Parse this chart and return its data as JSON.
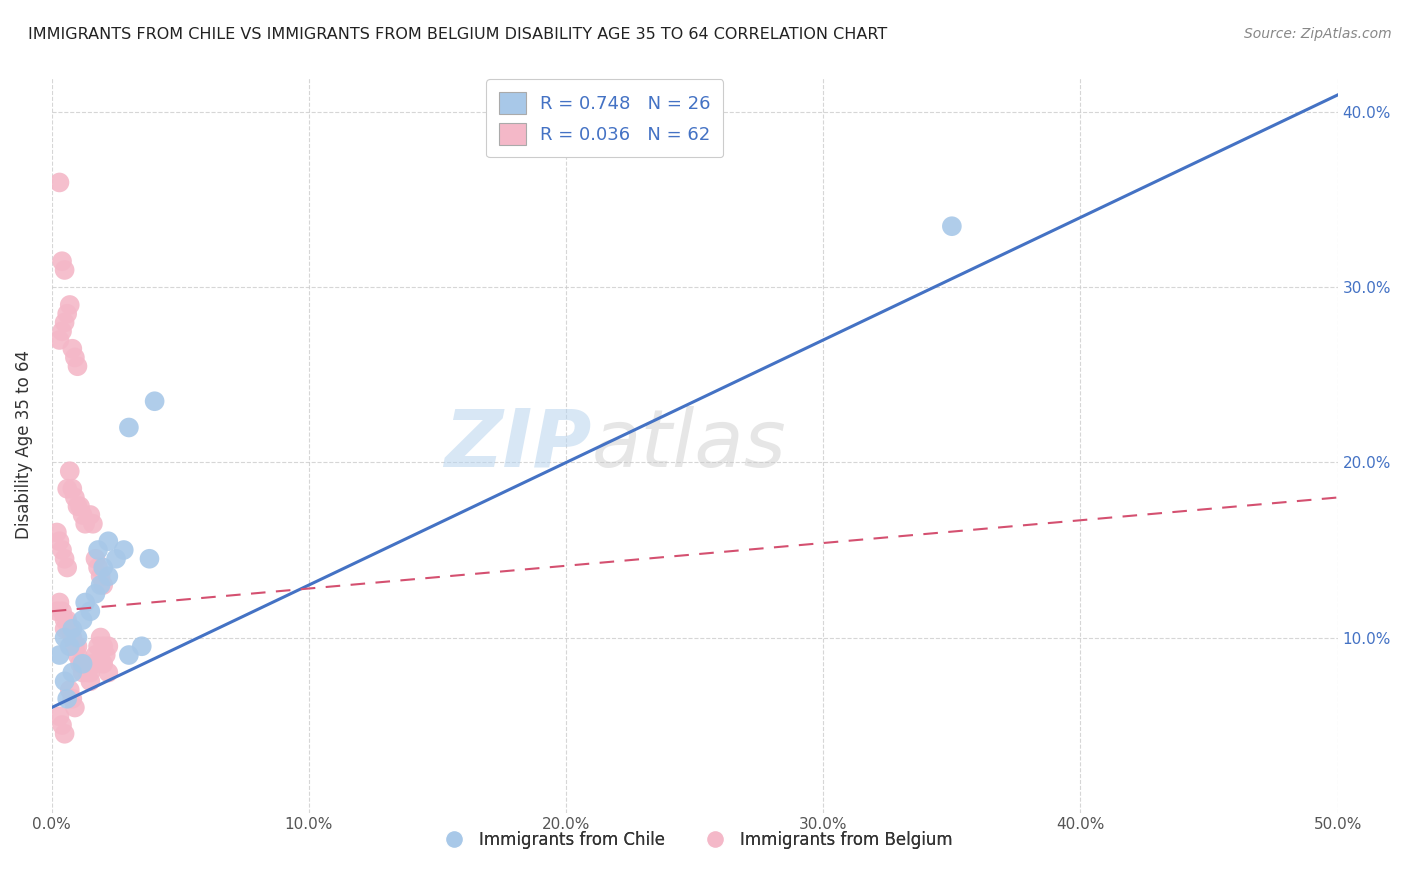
{
  "title": "IMMIGRANTS FROM CHILE VS IMMIGRANTS FROM BELGIUM DISABILITY AGE 35 TO 64 CORRELATION CHART",
  "source": "Source: ZipAtlas.com",
  "ylabel": "Disability Age 35 to 64",
  "xlim": [
    0.0,
    0.5
  ],
  "ylim": [
    0.0,
    0.42
  ],
  "xticks": [
    0.0,
    0.1,
    0.2,
    0.3,
    0.4,
    0.5
  ],
  "yticks": [
    0.1,
    0.2,
    0.3,
    0.4
  ],
  "xtick_labels": [
    "0.0%",
    "10.0%",
    "20.0%",
    "30.0%",
    "40.0%",
    "50.0%"
  ],
  "ytick_labels": [
    "10.0%",
    "20.0%",
    "30.0%",
    "40.0%"
  ],
  "legend1_label": "R = 0.748   N = 26",
  "legend2_label": "R = 0.036   N = 62",
  "legend_bottom_label1": "Immigrants from Chile",
  "legend_bottom_label2": "Immigrants from Belgium",
  "watermark_zip": "ZIP",
  "watermark_atlas": "atlas",
  "chile_color": "#a8c8e8",
  "chile_line_color": "#4472c4",
  "belgium_color": "#f4b8c8",
  "belgium_line_color": "#d45070",
  "chile_line_x": [
    0.0,
    0.5
  ],
  "chile_line_y": [
    0.06,
    0.41
  ],
  "belgium_line_x": [
    0.0,
    0.5
  ],
  "belgium_line_y": [
    0.115,
    0.18
  ],
  "chile_points_x": [
    0.003,
    0.005,
    0.007,
    0.008,
    0.01,
    0.012,
    0.013,
    0.015,
    0.017,
    0.019,
    0.02,
    0.022,
    0.025,
    0.028,
    0.03,
    0.035,
    0.038,
    0.04,
    0.005,
    0.008,
    0.012,
    0.018,
    0.022,
    0.03,
    0.35,
    0.006
  ],
  "chile_points_y": [
    0.09,
    0.1,
    0.095,
    0.105,
    0.1,
    0.11,
    0.12,
    0.115,
    0.125,
    0.13,
    0.14,
    0.135,
    0.145,
    0.15,
    0.09,
    0.095,
    0.145,
    0.235,
    0.075,
    0.08,
    0.085,
    0.15,
    0.155,
    0.22,
    0.335,
    0.065
  ],
  "belgium_points_x": [
    0.002,
    0.003,
    0.004,
    0.005,
    0.005,
    0.006,
    0.007,
    0.008,
    0.009,
    0.01,
    0.01,
    0.011,
    0.012,
    0.013,
    0.014,
    0.015,
    0.015,
    0.016,
    0.017,
    0.018,
    0.019,
    0.02,
    0.02,
    0.021,
    0.022,
    0.003,
    0.004,
    0.005,
    0.006,
    0.007,
    0.008,
    0.009,
    0.01,
    0.011,
    0.012,
    0.013,
    0.002,
    0.003,
    0.004,
    0.005,
    0.006,
    0.007,
    0.008,
    0.009,
    0.01,
    0.015,
    0.016,
    0.017,
    0.018,
    0.019,
    0.02,
    0.022,
    0.003,
    0.004,
    0.005,
    0.006,
    0.007,
    0.008,
    0.009,
    0.003,
    0.004,
    0.005
  ],
  "belgium_points_y": [
    0.115,
    0.12,
    0.115,
    0.11,
    0.105,
    0.11,
    0.105,
    0.1,
    0.095,
    0.09,
    0.095,
    0.085,
    0.08,
    0.085,
    0.08,
    0.075,
    0.08,
    0.085,
    0.09,
    0.095,
    0.1,
    0.095,
    0.085,
    0.09,
    0.095,
    0.27,
    0.275,
    0.28,
    0.285,
    0.29,
    0.265,
    0.26,
    0.255,
    0.175,
    0.17,
    0.165,
    0.16,
    0.155,
    0.15,
    0.145,
    0.14,
    0.195,
    0.185,
    0.18,
    0.175,
    0.17,
    0.165,
    0.145,
    0.14,
    0.135,
    0.13,
    0.08,
    0.36,
    0.315,
    0.31,
    0.185,
    0.07,
    0.065,
    0.06,
    0.055,
    0.05,
    0.045
  ]
}
